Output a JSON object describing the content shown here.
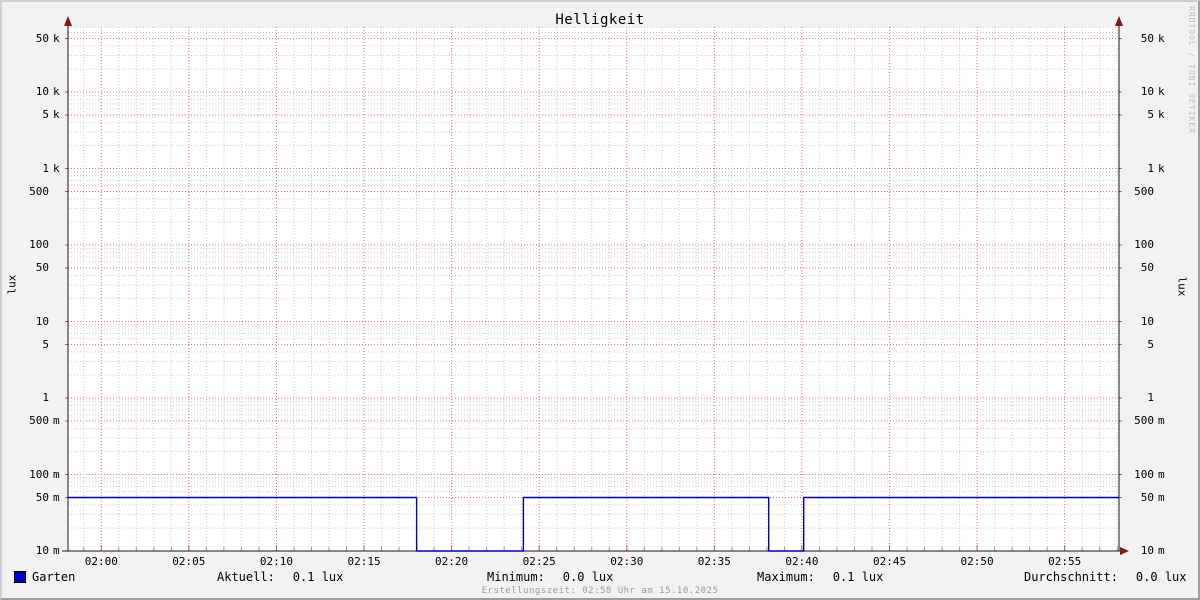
{
  "title": "Helligkeit",
  "watermark": "RRDTOOL / TOBI OETIKER",
  "y_unit_left": "lux",
  "y_unit_right": "lux",
  "footer": "Erstellungszeit: 02:58 Uhr am 15.10.2025",
  "legend": {
    "series_label": "Garten",
    "series_color": "#0000cc",
    "stats": [
      {
        "label": "Aktuell:",
        "value": "0.1 lux"
      },
      {
        "label": "Minimum:",
        "value": "0.0 lux"
      },
      {
        "label": "Maximum:",
        "value": "0.1 lux"
      },
      {
        "label": "Durchschnitt:",
        "value": "0.0 lux"
      }
    ]
  },
  "colors": {
    "background": "#f2f2f2",
    "canvas": "#ffffff",
    "grid_major": "#dd7070",
    "grid_minor": "#c9c9c9",
    "axis": "#1a1a1a",
    "arrow": "#7f1818",
    "line": "#0000bb"
  },
  "chart_data": {
    "type": "line",
    "title": "Helligkeit",
    "ylabel": "lux",
    "y_scale": "log",
    "y_min": 0.01,
    "y_max": 70000,
    "grid": true,
    "legend_position": "bottom",
    "y_ticks": [
      {
        "label": "10",
        "unit": "m",
        "value": 0.01
      },
      {
        "label": "50",
        "unit": "m",
        "value": 0.05
      },
      {
        "label": "100",
        "unit": "m",
        "value": 0.1
      },
      {
        "label": "500",
        "unit": "m",
        "value": 0.5
      },
      {
        "label": "1",
        "unit": "",
        "value": 1
      },
      {
        "label": "5",
        "unit": "",
        "value": 5
      },
      {
        "label": "10",
        "unit": "",
        "value": 10
      },
      {
        "label": "50",
        "unit": "",
        "value": 50
      },
      {
        "label": "100",
        "unit": "",
        "value": 100
      },
      {
        "label": "500",
        "unit": "",
        "value": 500
      },
      {
        "label": "1",
        "unit": "k",
        "value": 1000
      },
      {
        "label": "5",
        "unit": "k",
        "value": 5000
      },
      {
        "label": "10",
        "unit": "k",
        "value": 10000
      },
      {
        "label": "50",
        "unit": "k",
        "value": 50000
      }
    ],
    "x_ticks": [
      {
        "label": "02:00",
        "minute": 120
      },
      {
        "label": "02:05",
        "minute": 125
      },
      {
        "label": "02:10",
        "minute": 130
      },
      {
        "label": "02:15",
        "minute": 135
      },
      {
        "label": "02:20",
        "minute": 140
      },
      {
        "label": "02:25",
        "minute": 145
      },
      {
        "label": "02:30",
        "minute": 150
      },
      {
        "label": "02:35",
        "minute": 155
      },
      {
        "label": "02:40",
        "minute": 160
      },
      {
        "label": "02:45",
        "minute": 165
      },
      {
        "label": "02:50",
        "minute": 170
      },
      {
        "label": "02:55",
        "minute": 175
      }
    ],
    "x_start_minute": 118.1,
    "x_end_minute": 178.1,
    "series": [
      {
        "name": "Garten",
        "color": "#0000bb",
        "unit": "lux",
        "segments": [
          {
            "from_minute": 118.1,
            "to_minute": 138.0,
            "lux": 0.05
          },
          {
            "from_minute": 138.0,
            "to_minute": 144.1,
            "lux": 0.0
          },
          {
            "from_minute": 144.1,
            "to_minute": 158.1,
            "lux": 0.05
          },
          {
            "from_minute": 158.1,
            "to_minute": 160.1,
            "lux": 0.0
          },
          {
            "from_minute": 160.1,
            "to_minute": 178.1,
            "lux": 0.05
          }
        ]
      }
    ]
  }
}
